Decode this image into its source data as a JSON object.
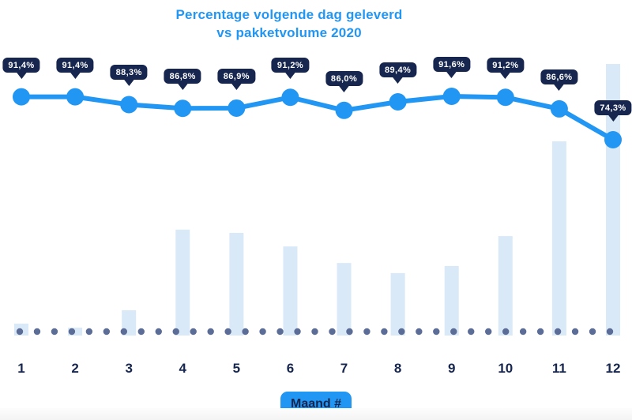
{
  "title": {
    "line1": "Percentage volgende dag geleverd",
    "line2": "vs pakketvolume 2020"
  },
  "x_axis": {
    "label_badge": "Maand #",
    "ticks": [
      "1",
      "2",
      "3",
      "4",
      "5",
      "6",
      "7",
      "8",
      "9",
      "10",
      "11",
      "12"
    ]
  },
  "chart_data": {
    "type": "line",
    "subtype": "line-with-bar-combo",
    "title": "Percentage volgende dag geleverd vs pakketvolume 2020",
    "xlabel": "Maand #",
    "ylabel": "",
    "categories": [
      1,
      2,
      3,
      4,
      5,
      6,
      7,
      8,
      9,
      10,
      11,
      12
    ],
    "series": [
      {
        "name": "Percentage volgende dag geleverd",
        "type": "line",
        "unit": "%",
        "values": [
          91.4,
          91.4,
          88.3,
          86.8,
          86.9,
          91.2,
          86.0,
          89.4,
          91.6,
          91.2,
          86.6,
          74.3
        ],
        "labels": [
          "91,4%",
          "91,4%",
          "88,3%",
          "86,8%",
          "86,9%",
          "91,2%",
          "86,0%",
          "89,4%",
          "91,6%",
          "91,2%",
          "86,6%",
          "74,3%"
        ]
      },
      {
        "name": "pakketvolume 2020",
        "type": "bar",
        "unit": "relative-index-max-100",
        "values": [
          4.4,
          2.9,
          9.3,
          39.0,
          37.8,
          32.8,
          26.7,
          23.0,
          25.6,
          36.6,
          71.5,
          100.0
        ]
      }
    ],
    "legend": "none",
    "grid": "off",
    "baseline_dotted": true,
    "value_labels_shown": true
  },
  "colors": {
    "accent_blue": "#2196f3",
    "badge_navy": "#16264e",
    "label_navy": "#16264e",
    "bar_fill": "#d9e9f8",
    "dot_slate": "#5b6d96",
    "badge_text": "#ffffff",
    "background": "#ffffff"
  }
}
